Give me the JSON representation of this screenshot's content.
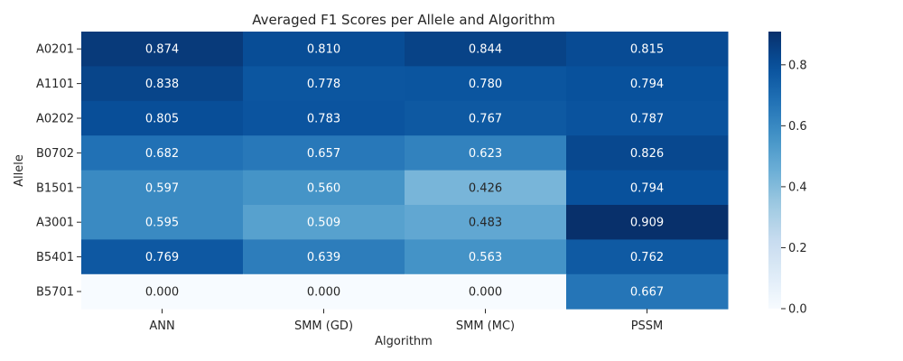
{
  "chart_data": {
    "type": "heatmap",
    "title": "Averaged F1 Scores per Allele and Algorithm",
    "xlabel": "Algorithm",
    "ylabel": "Allele",
    "columns": [
      "ANN",
      "SMM (GD)",
      "SMM (MC)",
      "PSSM"
    ],
    "rows": [
      "A0201",
      "A1101",
      "A0202",
      "B0702",
      "B1501",
      "A3001",
      "B5401",
      "B5701"
    ],
    "values": [
      [
        0.874,
        0.81,
        0.844,
        0.815
      ],
      [
        0.838,
        0.778,
        0.78,
        0.794
      ],
      [
        0.805,
        0.783,
        0.767,
        0.787
      ],
      [
        0.682,
        0.657,
        0.623,
        0.826
      ],
      [
        0.597,
        0.56,
        0.426,
        0.794
      ],
      [
        0.595,
        0.509,
        0.483,
        0.909
      ],
      [
        0.769,
        0.639,
        0.563,
        0.762
      ],
      [
        0.0,
        0.0,
        0.0,
        0.667
      ]
    ],
    "value_format": "0.000",
    "colormap": "Blues",
    "color_range": [
      0,
      0.909
    ],
    "colorbar_ticks": [
      0.0,
      0.2,
      0.4,
      0.6,
      0.8
    ],
    "colorbar_tick_labels": [
      "0.0",
      "0.2",
      "0.4",
      "0.6",
      "0.8"
    ]
  }
}
